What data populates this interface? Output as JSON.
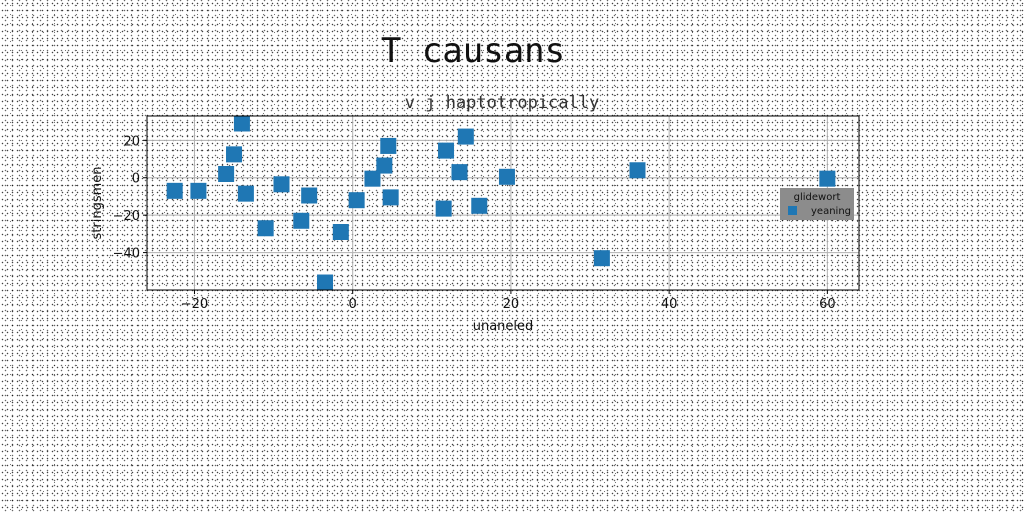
{
  "chart_data": {
    "type": "scatter",
    "title": "T causans",
    "subtitle": "v j haptotropically",
    "xlabel": "unaneled",
    "ylabel": "stringsmen",
    "xlim": [
      -26,
      64
    ],
    "ylim": [
      -60,
      33
    ],
    "xticks": [
      -20,
      0,
      20,
      40,
      60
    ],
    "yticks": [
      -40,
      -20,
      0,
      20
    ],
    "grid": true,
    "legend": {
      "title": "glidewort",
      "placement": "right"
    },
    "series": [
      {
        "name": "yeaning",
        "color": "#1f77b4",
        "marker": "square",
        "points": [
          {
            "x": -22.5,
            "y": -7
          },
          {
            "x": -19.5,
            "y": -7
          },
          {
            "x": -16,
            "y": 2
          },
          {
            "x": -15,
            "y": 12.5
          },
          {
            "x": -14,
            "y": 29
          },
          {
            "x": -13.5,
            "y": -8.5
          },
          {
            "x": -11,
            "y": -27
          },
          {
            "x": -9,
            "y": -3.5
          },
          {
            "x": -6.5,
            "y": -23
          },
          {
            "x": -5.5,
            "y": -9.5
          },
          {
            "x": -3.5,
            "y": -56
          },
          {
            "x": -1.5,
            "y": -29
          },
          {
            "x": 0.5,
            "y": -12
          },
          {
            "x": 2.5,
            "y": -0.5
          },
          {
            "x": 4,
            "y": 6.5
          },
          {
            "x": 4.5,
            "y": 17
          },
          {
            "x": 4.8,
            "y": -10.5
          },
          {
            "x": 11.5,
            "y": -16.5
          },
          {
            "x": 11.8,
            "y": 14.5
          },
          {
            "x": 13.5,
            "y": 3
          },
          {
            "x": 14.3,
            "y": 22
          },
          {
            "x": 16,
            "y": -15
          },
          {
            "x": 19.5,
            "y": 0.5
          },
          {
            "x": 31.5,
            "y": -43
          },
          {
            "x": 36,
            "y": 4
          },
          {
            "x": 60,
            "y": -0.5
          }
        ]
      }
    ]
  }
}
